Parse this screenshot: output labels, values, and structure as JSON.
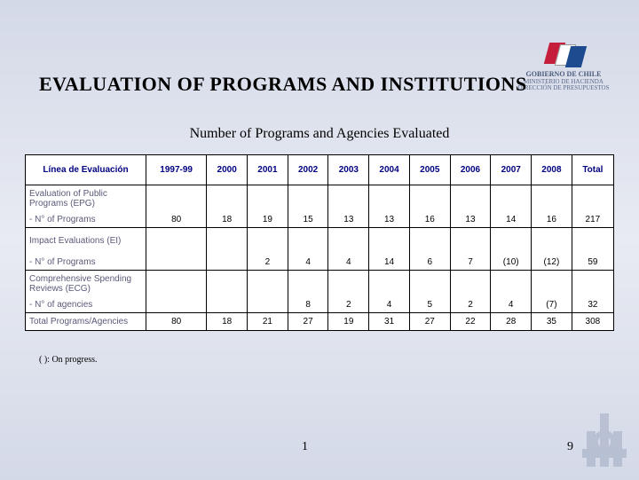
{
  "title": "EVALUATION OF PROGRAMS AND INSTITUTIONS",
  "subtitle": "Number of Programs and Agencies Evaluated",
  "footnote": "( ): On progress.",
  "page_center": "1",
  "page_right": "9",
  "logo": {
    "line1": "GOBIERNO DE CHILE",
    "line2": "MINISTERIO DE HACIENDA",
    "line3": "DIRECCIÓN DE PRESUPUESTOS"
  },
  "table": {
    "columns": [
      "Línea de Evaluación",
      "1997-99",
      "2000",
      "2001",
      "2002",
      "2003",
      "2004",
      "2005",
      "2006",
      "2007",
      "2008",
      "Total"
    ],
    "sections": [
      {
        "header": "Evaluation of Public Programs (EPG)",
        "sub": "-    N° of Programs",
        "values": [
          "80",
          "18",
          "19",
          "15",
          "13",
          "13",
          "16",
          "13",
          "14",
          "16",
          "217"
        ]
      },
      {
        "header": "Impact Evaluations (EI)",
        "sub": "-    N° of Programs",
        "values": [
          "",
          "",
          "2",
          "4",
          "4",
          "14",
          "6",
          "7",
          "(10)",
          "(12)",
          "59"
        ]
      },
      {
        "header": "Comprehensive Spending Reviews (ECG)",
        "sub": "-    N° of agencies",
        "values": [
          "",
          "",
          "",
          "8",
          "2",
          "4",
          "5",
          "2",
          "4",
          "(7)",
          "32"
        ]
      }
    ],
    "total": {
      "label": "Total Programs/Agencies",
      "values": [
        "80",
        "18",
        "21",
        "27",
        "19",
        "31",
        "27",
        "22",
        "28",
        "35",
        "308"
      ]
    },
    "header_bg": "#ffffff",
    "header_color": "#000080",
    "cell_color": "#000000",
    "label_color": "#5a5a7a",
    "border_color": "#000000"
  }
}
